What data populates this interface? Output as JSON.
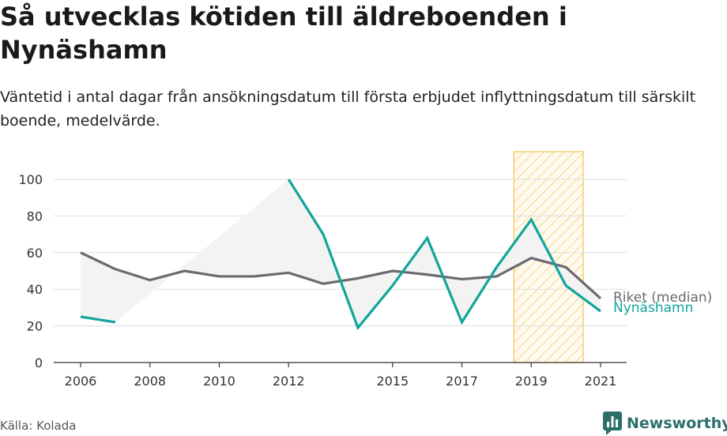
{
  "header": {
    "title": "Så utvecklas kötiden till äldreboenden i Nynäshamn",
    "subtitle": "Väntetid i antal dagar från ansökningsdatum till första erbjudet inflyttningsdatum till särskilt boende, medelvärde."
  },
  "footer": {
    "source": "Källa: Kolada",
    "brand": "Newsworthy",
    "brand_icon": "newsworthy-logo-icon"
  },
  "colors": {
    "riket": "#6b6a70",
    "nynashamn": "#13a59a",
    "band": "#f3f3f3",
    "highlight_stroke": "#f2c85b",
    "grid": "#dddddd",
    "brand": "#2b6f6b"
  },
  "chart_data": {
    "type": "line",
    "title": "Så utvecklas kötiden till äldreboenden i Nynäshamn",
    "x": [
      2006,
      2007,
      2008,
      2009,
      2010,
      2011,
      2012,
      2013,
      2014,
      2015,
      2016,
      2017,
      2018,
      2019,
      2020,
      2021
    ],
    "xticks": [
      2006,
      2008,
      2010,
      2012,
      2015,
      2017,
      2019,
      2021
    ],
    "xlim": [
      2006,
      2021
    ],
    "yticks": [
      0,
      20,
      40,
      60,
      80,
      100
    ],
    "ylim": [
      0,
      100
    ],
    "grid": true,
    "series": [
      {
        "name": "Riket (median)",
        "values": [
          60,
          51,
          45,
          50,
          47,
          47,
          49,
          43,
          46,
          50,
          48,
          45.5,
          47,
          57,
          52,
          35
        ]
      },
      {
        "name": "Nynäshamn",
        "values": [
          25,
          22,
          null,
          null,
          null,
          null,
          100,
          70,
          19,
          42,
          68,
          22,
          52,
          78,
          42,
          28
        ]
      }
    ],
    "highlight_range": [
      2018.5,
      2020.5
    ],
    "legend": "end-of-line labels, right"
  }
}
